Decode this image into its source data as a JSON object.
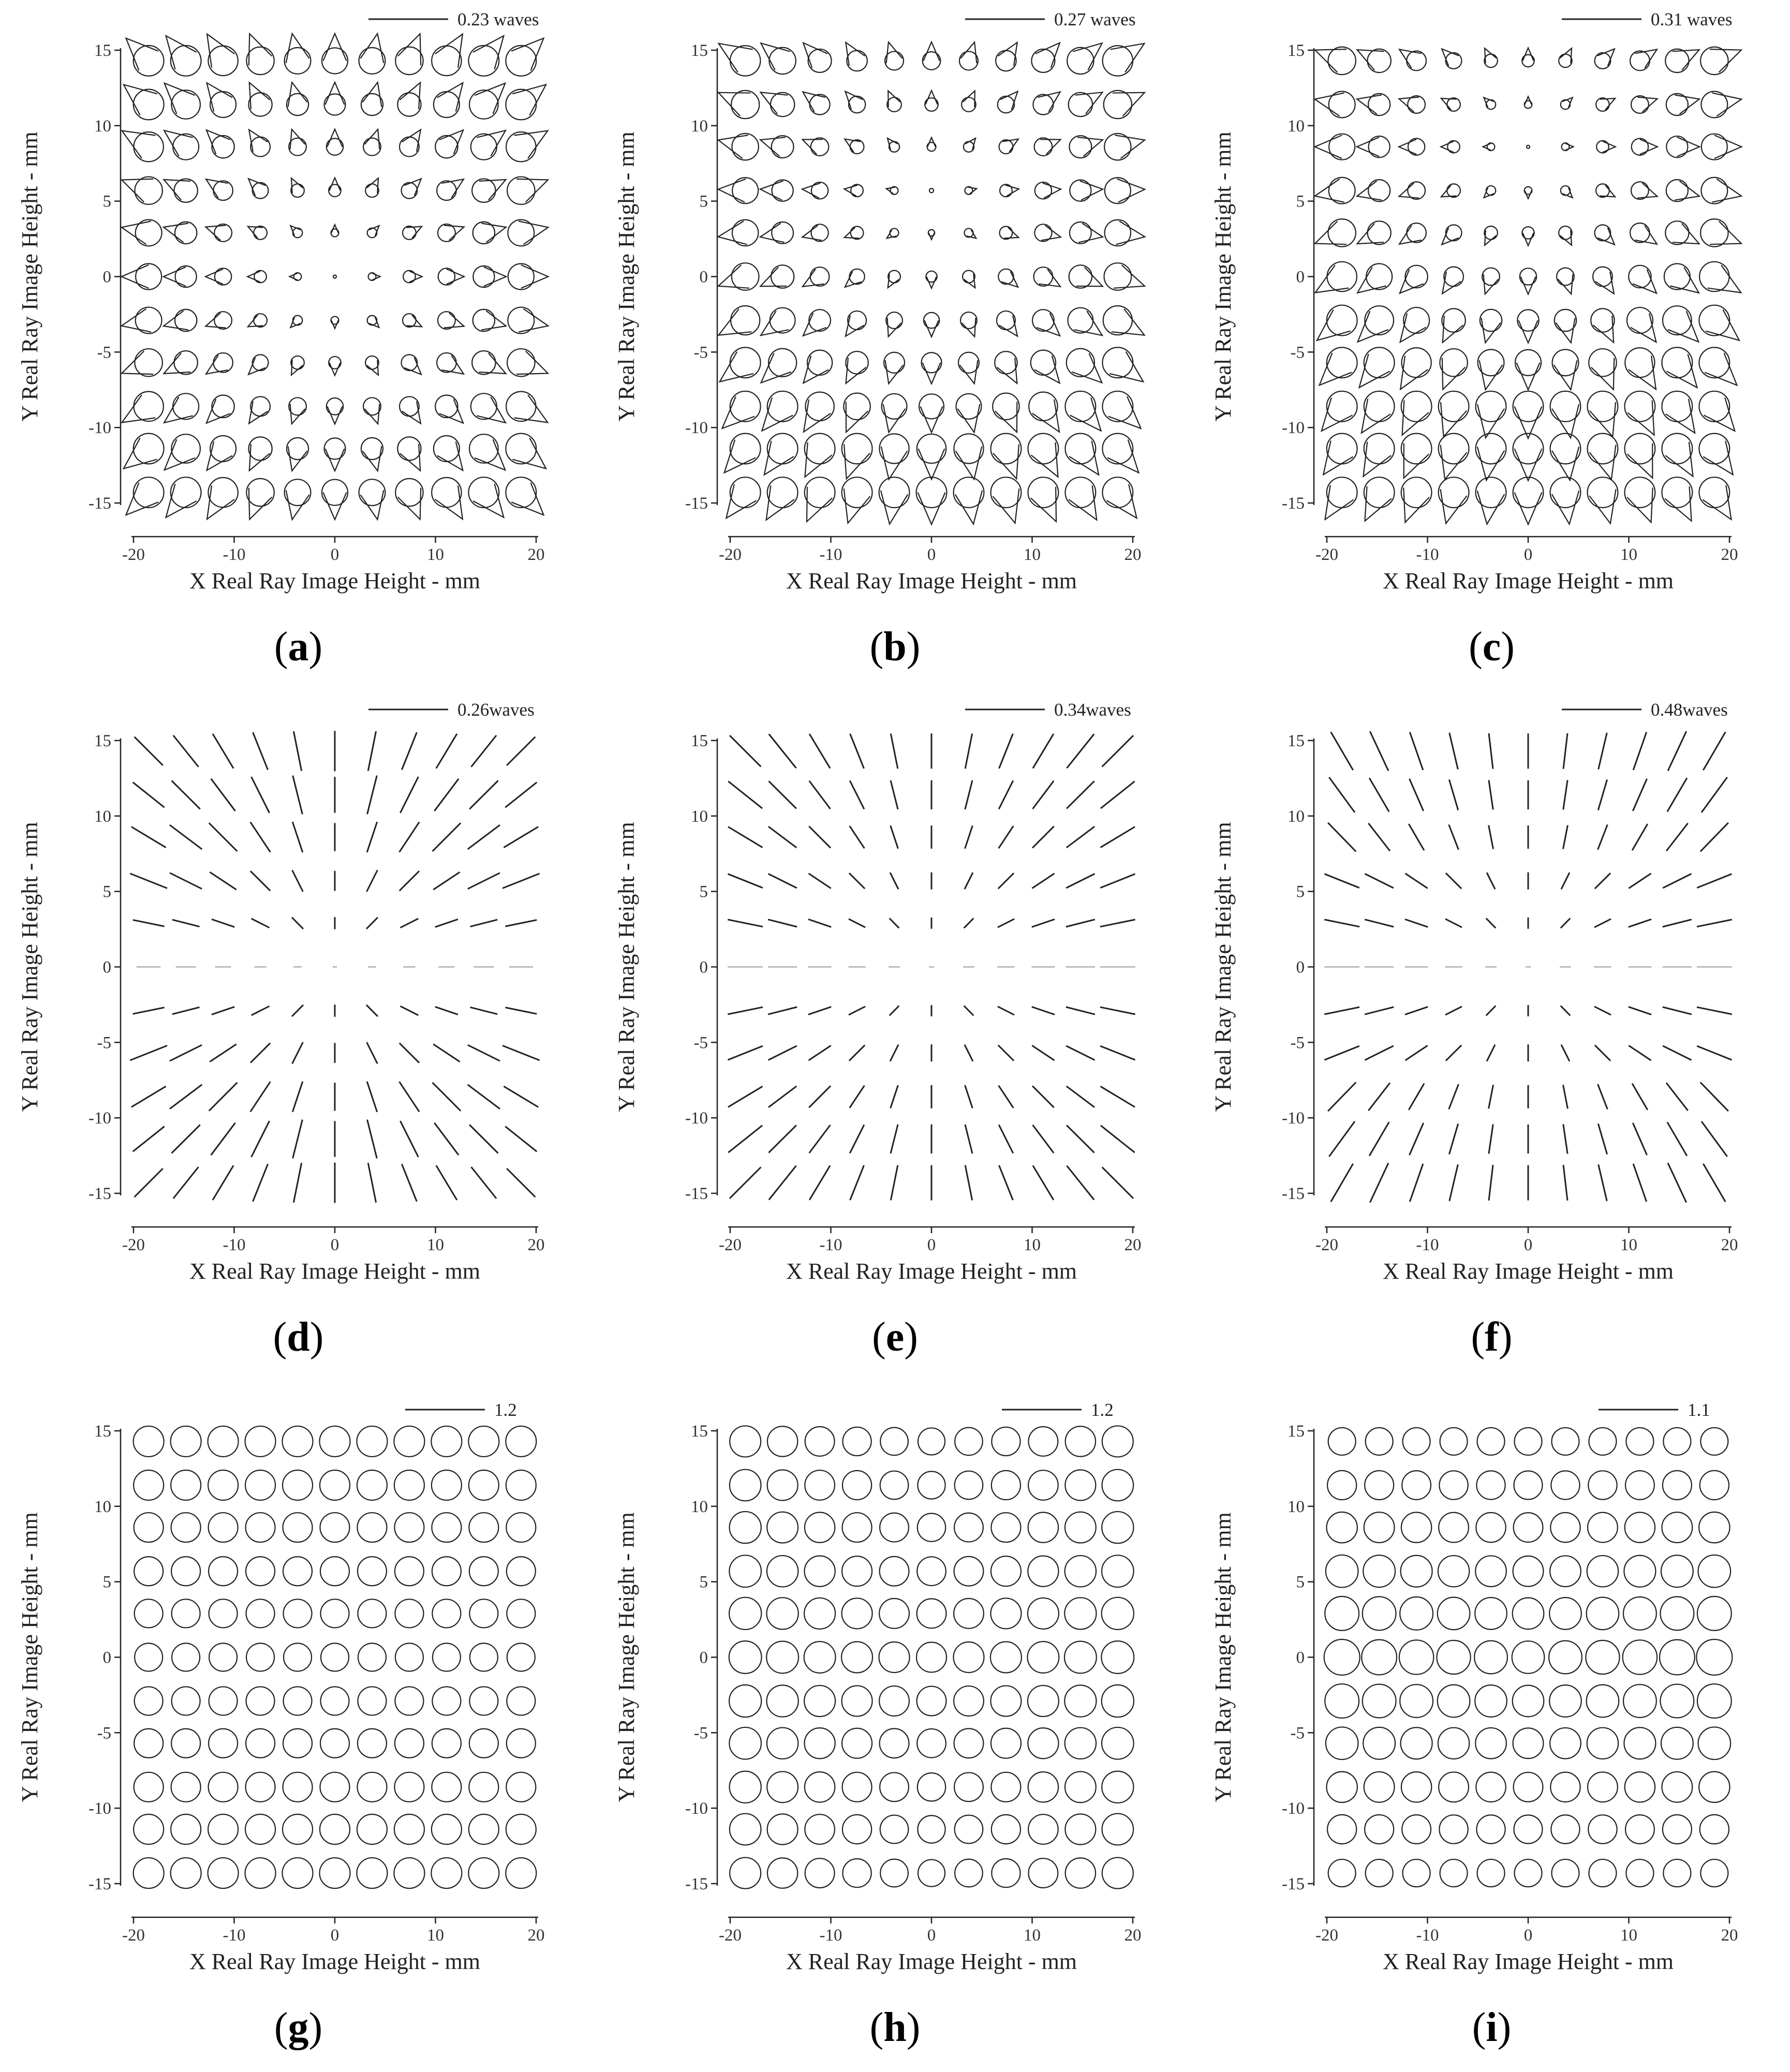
{
  "figure": {
    "x_axis_label": "X Real Ray Image Height - mm",
    "y_axis_label": "Y Real Ray Image Height - mm",
    "x_ticks": [
      "-20",
      "-10",
      "0",
      "10",
      "20"
    ],
    "y_ticks": [
      "15",
      "10",
      "5",
      "0",
      "-5",
      "-10",
      "-15"
    ],
    "stroke_color": "#222222"
  },
  "chart_data": [
    {
      "id": "a",
      "label": "a",
      "type": "scatter",
      "glyph": "coma",
      "scale_label": "0.23 waves",
      "xlim": [
        -20,
        20
      ],
      "ylim": [
        -15,
        15
      ],
      "grid": false,
      "x": [
        -18.5,
        -14.8,
        -11.1,
        -7.4,
        -3.7,
        0,
        3.7,
        7.4,
        11.1,
        14.8,
        18.5
      ],
      "y": [
        14.3,
        11.4,
        8.6,
        5.7,
        2.9,
        0,
        -2.9,
        -5.7,
        -8.6,
        -11.4,
        -14.3
      ]
    },
    {
      "id": "b",
      "label": "b",
      "type": "scatter",
      "glyph": "coma",
      "scale_label": "0.27 waves",
      "xlim": [
        -20,
        20
      ],
      "ylim": [
        -15,
        15
      ],
      "grid": false,
      "x": [
        -18.5,
        -14.8,
        -11.1,
        -7.4,
        -3.7,
        0,
        3.7,
        7.4,
        11.1,
        14.8,
        18.5
      ],
      "y": [
        14.3,
        11.4,
        8.6,
        5.7,
        2.9,
        0,
        -2.9,
        -5.7,
        -8.6,
        -11.4,
        -14.3
      ]
    },
    {
      "id": "c",
      "label": "c",
      "type": "scatter",
      "glyph": "coma",
      "scale_label": "0.31 waves",
      "xlim": [
        -20,
        20
      ],
      "ylim": [
        -15,
        15
      ],
      "grid": false,
      "x": [
        -18.5,
        -14.8,
        -11.1,
        -7.4,
        -3.7,
        0,
        3.7,
        7.4,
        11.1,
        14.8,
        18.5
      ],
      "y": [
        14.3,
        11.4,
        8.6,
        5.7,
        2.9,
        0,
        -2.9,
        -5.7,
        -8.6,
        -11.4,
        -14.3
      ]
    },
    {
      "id": "d",
      "label": "d",
      "type": "scatter",
      "glyph": "astigmatism",
      "scale_label": "0.26waves",
      "xlim": [
        -20,
        20
      ],
      "ylim": [
        -15,
        15
      ],
      "grid": false,
      "x": [
        -18.5,
        -14.8,
        -11.1,
        -7.4,
        -3.7,
        0,
        3.7,
        7.4,
        11.1,
        14.8,
        18.5
      ],
      "y": [
        14.3,
        11.4,
        8.6,
        5.7,
        2.9,
        0,
        -2.9,
        -5.7,
        -8.6,
        -11.4,
        -14.3
      ]
    },
    {
      "id": "e",
      "label": "e",
      "type": "scatter",
      "glyph": "astigmatism",
      "scale_label": "0.34waves",
      "xlim": [
        -20,
        20
      ],
      "ylim": [
        -15,
        15
      ],
      "grid": false,
      "x": [
        -18.5,
        -14.8,
        -11.1,
        -7.4,
        -3.7,
        0,
        3.7,
        7.4,
        11.1,
        14.8,
        18.5
      ],
      "y": [
        14.3,
        11.4,
        8.6,
        5.7,
        2.9,
        0,
        -2.9,
        -5.7,
        -8.6,
        -11.4,
        -14.3
      ]
    },
    {
      "id": "f",
      "label": "f",
      "type": "scatter",
      "glyph": "astigmatism",
      "scale_label": "0.48waves",
      "xlim": [
        -20,
        20
      ],
      "ylim": [
        -15,
        15
      ],
      "grid": false,
      "x": [
        -18.5,
        -14.8,
        -11.1,
        -7.4,
        -3.7,
        0,
        3.7,
        7.4,
        11.1,
        14.8,
        18.5
      ],
      "y": [
        14.3,
        11.4,
        8.6,
        5.7,
        2.9,
        0,
        -2.9,
        -5.7,
        -8.6,
        -11.4,
        -14.3
      ]
    },
    {
      "id": "g",
      "label": "g",
      "type": "scatter",
      "glyph": "circle",
      "scale_label": "1.2",
      "xlim": [
        -20,
        20
      ],
      "ylim": [
        -15,
        15
      ],
      "grid": false,
      "x": [
        -18.5,
        -14.8,
        -11.1,
        -7.4,
        -3.7,
        0,
        3.7,
        7.4,
        11.1,
        14.8,
        18.5
      ],
      "y": [
        14.3,
        11.4,
        8.6,
        5.7,
        2.9,
        0,
        -2.9,
        -5.7,
        -8.6,
        -11.4,
        -14.3
      ]
    },
    {
      "id": "h",
      "label": "h",
      "type": "scatter",
      "glyph": "circle",
      "scale_label": "1.2",
      "xlim": [
        -20,
        20
      ],
      "ylim": [
        -15,
        15
      ],
      "grid": false,
      "x": [
        -18.5,
        -14.8,
        -11.1,
        -7.4,
        -3.7,
        0,
        3.7,
        7.4,
        11.1,
        14.8,
        18.5
      ],
      "y": [
        14.3,
        11.4,
        8.6,
        5.7,
        2.9,
        0,
        -2.9,
        -5.7,
        -8.6,
        -11.4,
        -14.3
      ]
    },
    {
      "id": "i",
      "label": "i",
      "type": "scatter",
      "glyph": "circle",
      "scale_label": "1.1",
      "xlim": [
        -20,
        20
      ],
      "ylim": [
        -15,
        15
      ],
      "grid": false,
      "x": [
        -18.5,
        -14.8,
        -11.1,
        -7.4,
        -3.7,
        0,
        3.7,
        7.4,
        11.1,
        14.8,
        18.5
      ],
      "y": [
        14.3,
        11.4,
        8.6,
        5.7,
        2.9,
        0,
        -2.9,
        -5.7,
        -8.6,
        -11.4,
        -14.3
      ]
    }
  ]
}
